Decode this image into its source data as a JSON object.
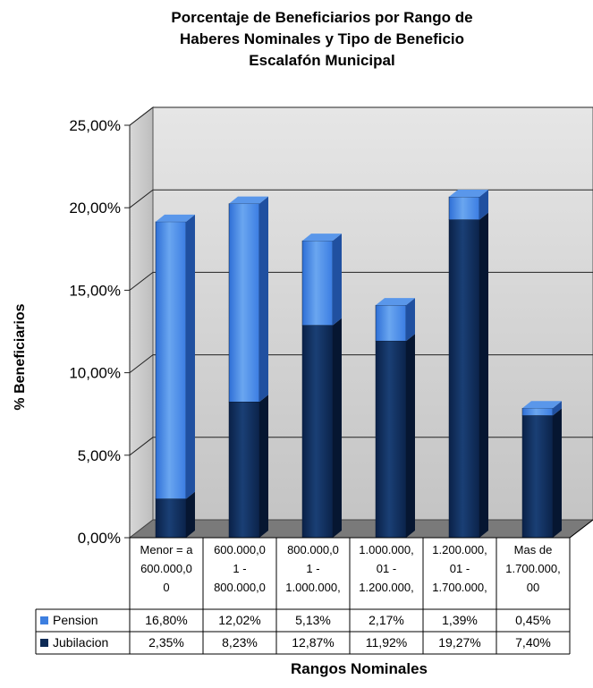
{
  "chart_data": {
    "type": "bar",
    "stacked": true,
    "three_d": true,
    "title_lines": [
      "Porcentaje de Beneficiarios por Rango de",
      "Haberes Nominales y Tipo de Beneficio",
      "Escalafón Municipal"
    ],
    "xlabel": "Rangos Nominales",
    "ylabel": "% Beneficiarios",
    "ylim": [
      0,
      25
    ],
    "yticks": [
      "0,00%",
      "5,00%",
      "10,00%",
      "15,00%",
      "20,00%",
      "25,00%"
    ],
    "grid": true,
    "legend": "data-table",
    "categories": [
      [
        "Menor = a",
        "600.000,0",
        "0"
      ],
      [
        "600.000,0",
        "1 -",
        "800.000,0"
      ],
      [
        "800.000,0",
        "1 -",
        "1.000.000,"
      ],
      [
        "1.000.000,",
        "01 -",
        "1.200.000,"
      ],
      [
        "1.200.000,",
        "01 -",
        "1.700.000,"
      ],
      [
        "Mas de",
        "1.700.000,",
        "00"
      ]
    ],
    "series": [
      {
        "name": "Pension",
        "color": "#3d7fe0",
        "values": [
          16.8,
          12.02,
          5.13,
          2.17,
          1.39,
          0.45
        ],
        "labels": [
          "16,80%",
          "12,02%",
          "5,13%",
          "2,17%",
          "1,39%",
          "0,45%"
        ]
      },
      {
        "name": "Jubilacion",
        "color": "#0d2a55",
        "values": [
          2.35,
          8.23,
          12.87,
          11.92,
          19.27,
          7.4
        ],
        "labels": [
          "2,35%",
          "8,23%",
          "12,87%",
          "11,92%",
          "19,27%",
          "7,40%"
        ]
      }
    ]
  }
}
